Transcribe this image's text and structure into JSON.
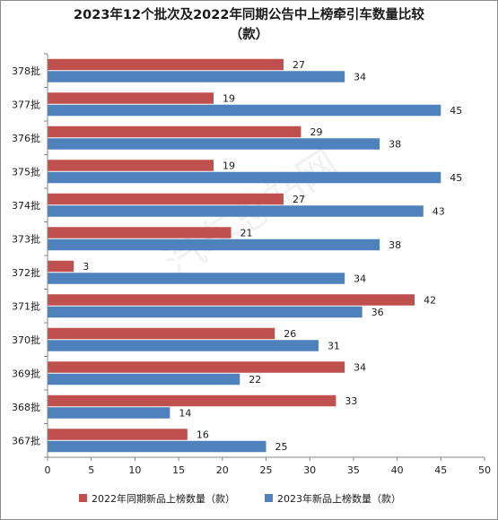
{
  "title_line1": "2023年12个批次及2022年同期公告中上榜牵引车数量比较",
  "title_line2": "（款）",
  "watermark": "汽车总站网",
  "colors": {
    "series_2022": "#c0504d",
    "series_2023": "#4f81bd",
    "axis": "#868686",
    "text": "#1a1a1a"
  },
  "chart_data": {
    "type": "bar",
    "orientation": "horizontal",
    "title": "2023年12个批次及2022年同期公告中上榜牵引车数量比较（款）",
    "categories": [
      "378批",
      "377批",
      "376批",
      "375批",
      "374批",
      "373批",
      "372批",
      "371批",
      "370批",
      "369批",
      "368批",
      "367批"
    ],
    "series": [
      {
        "name": "2022年同期新品上榜数量（款）",
        "values": [
          27,
          19,
          29,
          19,
          27,
          21,
          3,
          42,
          26,
          34,
          33,
          16
        ]
      },
      {
        "name": "2023年新品上榜数量（款）",
        "values": [
          34,
          45,
          38,
          45,
          43,
          38,
          34,
          36,
          31,
          22,
          14,
          25
        ]
      }
    ],
    "xlim": [
      0,
      50
    ],
    "x_ticks": [
      0,
      5,
      10,
      15,
      20,
      25,
      30,
      35,
      40,
      45,
      50
    ],
    "grid": false,
    "legend_position": "bottom",
    "data_labels": true
  }
}
